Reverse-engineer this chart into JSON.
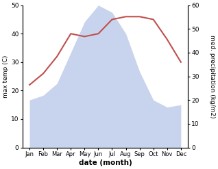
{
  "months": [
    "Jan",
    "Feb",
    "Mar",
    "Apr",
    "May",
    "Jun",
    "Jul",
    "Aug",
    "Sep",
    "Oct",
    "Nov",
    "Dec"
  ],
  "month_indices": [
    0,
    1,
    2,
    3,
    4,
    5,
    6,
    7,
    8,
    9,
    10,
    11
  ],
  "temperature": [
    22,
    26,
    32,
    40,
    39,
    40,
    45,
    46,
    46,
    45,
    38,
    30
  ],
  "precipitation": [
    20,
    22,
    27,
    40,
    53,
    60,
    57,
    48,
    32,
    20,
    17,
    18
  ],
  "temp_color": "#c0504d",
  "precip_fill_color": "#c8d4ed",
  "temp_ylim": [
    0,
    50
  ],
  "precip_ylim": [
    0,
    60
  ],
  "temp_yticks": [
    0,
    10,
    20,
    30,
    40,
    50
  ],
  "precip_yticks": [
    0,
    10,
    20,
    30,
    40,
    50,
    60
  ],
  "xlabel": "date (month)",
  "ylabel_left": "max temp (C)",
  "ylabel_right": "med. precipitation (kg/m2)",
  "fig_width": 3.18,
  "fig_height": 2.47,
  "dpi": 100
}
